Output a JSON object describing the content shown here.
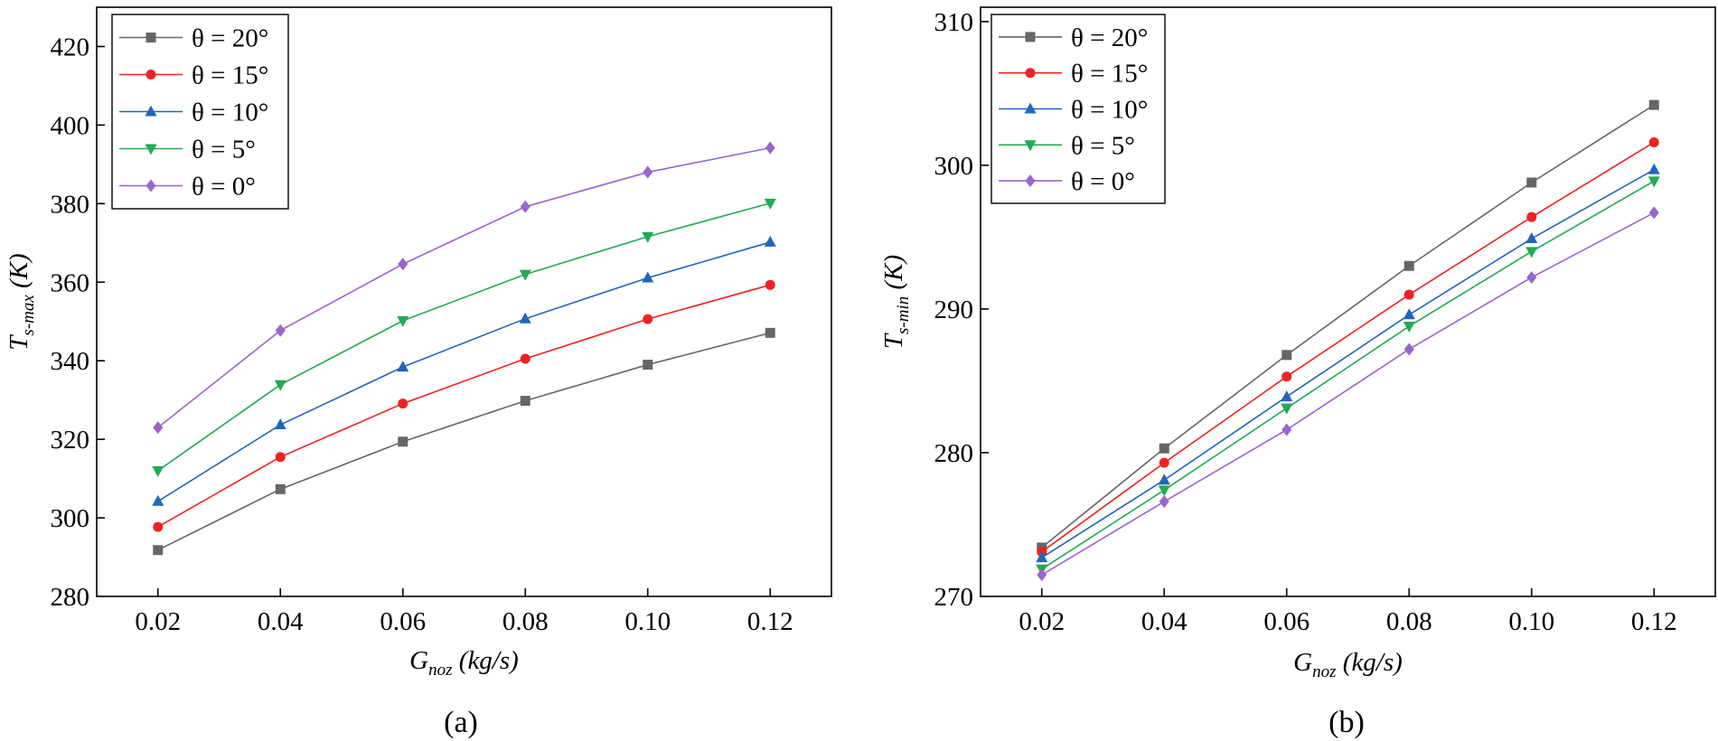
{
  "chart_data": [
    {
      "type": "line",
      "panel_label": "(a)",
      "x": [
        0.02,
        0.04,
        0.06,
        0.08,
        0.1,
        0.12
      ],
      "xtick_labels": [
        "0.02",
        "0.04",
        "0.06",
        "0.08",
        "0.10",
        "0.12"
      ],
      "xlim": [
        0.01,
        0.13
      ],
      "ylim": [
        280,
        430
      ],
      "yticks": [
        280,
        300,
        320,
        340,
        360,
        380,
        400,
        420
      ],
      "xlabel": {
        "main": "G",
        "sub": "noz",
        "rest": " (kg/s)"
      },
      "ylabel": {
        "main": "T",
        "sub": "s-max",
        "rest": " (K)"
      },
      "legend_position": "top-left",
      "series": [
        {
          "name": "θ = 20°",
          "values": [
            291.8,
            307.3,
            319.4,
            329.8,
            339.0,
            347.1
          ]
        },
        {
          "name": "θ = 15°",
          "values": [
            297.7,
            315.5,
            329.1,
            340.5,
            350.6,
            359.3
          ]
        },
        {
          "name": "θ = 10°",
          "values": [
            304.2,
            323.7,
            338.4,
            350.7,
            361.1,
            370.2
          ]
        },
        {
          "name": "θ = 5°",
          "values": [
            312.0,
            333.9,
            350.2,
            362.0,
            371.6,
            380.1
          ]
        },
        {
          "name": "θ = 0°",
          "values": [
            323.0,
            347.7,
            364.6,
            379.2,
            388.0,
            394.2
          ]
        }
      ]
    },
    {
      "type": "line",
      "panel_label": "(b)",
      "x": [
        0.02,
        0.04,
        0.06,
        0.08,
        0.1,
        0.12
      ],
      "xtick_labels": [
        "0.02",
        "0.04",
        "0.06",
        "0.08",
        "0.10",
        "0.12"
      ],
      "xlim": [
        0.01,
        0.13
      ],
      "ylim": [
        270,
        311
      ],
      "yticks": [
        270,
        280,
        290,
        300,
        310
      ],
      "xlabel": {
        "main": "G",
        "sub": "noz",
        "rest": " (kg/s)"
      },
      "ylabel": {
        "main": "T",
        "sub": "s-min",
        "rest": " (K)"
      },
      "legend_position": "top-left",
      "series": [
        {
          "name": "θ = 20°",
          "values": [
            273.4,
            280.3,
            286.8,
            293.0,
            298.8,
            304.2
          ]
        },
        {
          "name": "θ = 15°",
          "values": [
            273.1,
            279.3,
            285.3,
            291.0,
            296.4,
            301.6
          ]
        },
        {
          "name": "θ = 10°",
          "values": [
            272.7,
            278.1,
            283.9,
            289.6,
            294.9,
            299.7
          ]
        },
        {
          "name": "θ = 5°",
          "values": [
            271.9,
            277.4,
            283.1,
            288.8,
            294.0,
            298.9
          ]
        },
        {
          "name": "θ = 0°",
          "values": [
            271.5,
            276.6,
            281.6,
            287.2,
            292.2,
            296.7
          ]
        }
      ]
    }
  ],
  "series_style": [
    {
      "color": "#666666",
      "marker": "square-icon"
    },
    {
      "color": "#ee2222",
      "marker": "circle-icon"
    },
    {
      "color": "#2266bb",
      "marker": "triangle-up-icon"
    },
    {
      "color": "#22aa55",
      "marker": "triangle-down-icon"
    },
    {
      "color": "#9966cc",
      "marker": "diamond-icon"
    }
  ]
}
